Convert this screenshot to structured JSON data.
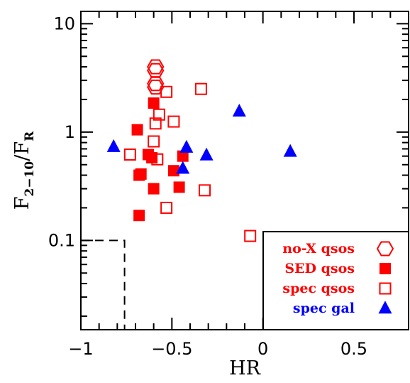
{
  "chart_data": {
    "type": "scatter",
    "xlabel": "HR",
    "ylabel": {
      "base": "F",
      "sub1": "2−10",
      "slash": "/F",
      "sub2": "R"
    },
    "xlim": [
      -1.0,
      0.8
    ],
    "ylim": [
      0.015,
      13
    ],
    "yscale": "log",
    "x_ticks": [
      {
        "value": -1.0,
        "label": "−1"
      },
      {
        "value": -0.5,
        "label": "−0.5"
      },
      {
        "value": 0.0,
        "label": "0"
      },
      {
        "value": 0.5,
        "label": "0.5"
      }
    ],
    "y_ticks": [
      {
        "value": 0.1,
        "label": "0.1"
      },
      {
        "value": 1,
        "label": "1"
      },
      {
        "value": 10,
        "label": "10"
      }
    ],
    "legend_position": "bottom-right",
    "series": [
      {
        "name": "no-X qsos",
        "marker": "hexagon-open",
        "color": "#ff0000",
        "points": [
          [
            -0.59,
            4.0
          ],
          [
            -0.59,
            3.7
          ],
          [
            -0.59,
            2.8
          ],
          [
            -0.59,
            2.6
          ]
        ]
      },
      {
        "name": "SED qsos",
        "marker": "square-filled",
        "color": "#ff0000",
        "points": [
          [
            -0.6,
            1.85
          ],
          [
            -0.69,
            1.05
          ],
          [
            -0.63,
            0.62
          ],
          [
            -0.61,
            0.58
          ],
          [
            -0.67,
            0.41
          ],
          [
            -0.68,
            0.4
          ],
          [
            -0.6,
            0.3
          ],
          [
            -0.49,
            0.44
          ],
          [
            -0.44,
            0.6
          ],
          [
            -0.46,
            0.31
          ],
          [
            -0.68,
            0.17
          ]
        ]
      },
      {
        "name": "spec qsos",
        "marker": "square-open",
        "color": "#ff0000",
        "points": [
          [
            -0.53,
            2.35
          ],
          [
            -0.34,
            2.5
          ],
          [
            -0.57,
            1.45
          ],
          [
            -0.59,
            1.2
          ],
          [
            -0.49,
            1.25
          ],
          [
            -0.6,
            0.82
          ],
          [
            -0.73,
            0.62
          ],
          [
            -0.58,
            0.56
          ],
          [
            -0.53,
            0.2
          ],
          [
            -0.32,
            0.29
          ],
          [
            -0.07,
            0.11
          ]
        ]
      },
      {
        "name": "spec gal",
        "marker": "triangle-filled",
        "color": "#0000ff",
        "points": [
          [
            -0.82,
            0.73
          ],
          [
            -0.42,
            0.72
          ],
          [
            -0.44,
            0.46
          ],
          [
            -0.31,
            0.61
          ],
          [
            -0.13,
            1.55
          ],
          [
            0.15,
            0.66
          ]
        ]
      }
    ]
  }
}
